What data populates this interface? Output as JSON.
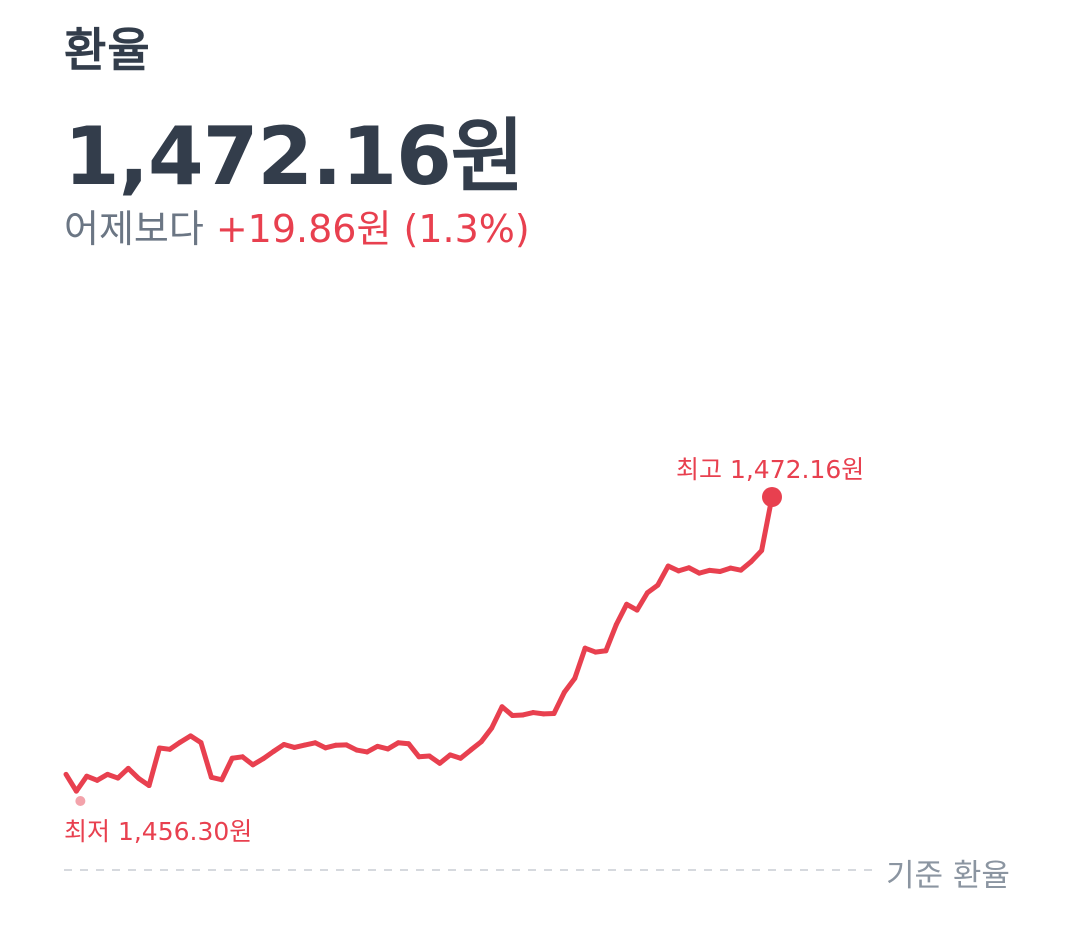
{
  "header": {
    "title": "환율",
    "rate": "1,472.16원",
    "change_label": "어제보다",
    "change_value": "+19.86원 (1.3%)"
  },
  "colors": {
    "line": "#e8404f",
    "title": "#333d4b",
    "muted": "#8b95a1",
    "low_dot": "#f3a3ab",
    "baseline": "#d6d9de"
  },
  "chart_data": {
    "type": "line",
    "high_label": "최고 1,472.16원",
    "low_label": "최저 1,456.30원",
    "baseline_label": "기준 환율",
    "high": 1472.16,
    "low": 1456.3,
    "values": [
      1457.3,
      1456.4,
      1457.2,
      1456.98,
      1457.3,
      1457.1,
      1457.62,
      1457.08,
      1456.7,
      1458.71,
      1458.64,
      1459.02,
      1459.36,
      1459.0,
      1457.14,
      1457.01,
      1458.16,
      1458.24,
      1457.81,
      1458.14,
      1458.53,
      1458.9,
      1458.74,
      1458.87,
      1458.99,
      1458.72,
      1458.86,
      1458.88,
      1458.6,
      1458.5,
      1458.8,
      1458.66,
      1458.99,
      1458.94,
      1458.24,
      1458.28,
      1457.89,
      1458.34,
      1458.16,
      1458.61,
      1459.05,
      1459.78,
      1460.92,
      1460.45,
      1460.48,
      1460.61,
      1460.54,
      1460.56,
      1461.7,
      1462.44,
      1464.06,
      1463.85,
      1463.92,
      1465.32,
      1466.41,
      1466.1,
      1467.03,
      1467.44,
      1468.46,
      1468.2,
      1468.37,
      1468.08,
      1468.23,
      1468.17,
      1468.35,
      1468.24,
      1468.7,
      1469.29,
      1472.16
    ]
  }
}
